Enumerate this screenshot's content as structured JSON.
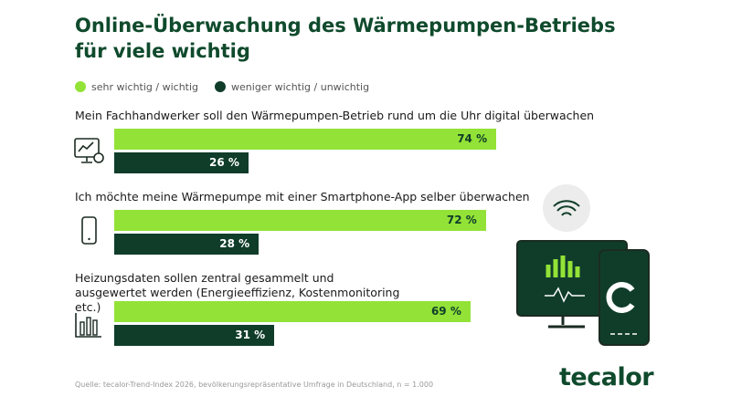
{
  "title": "Online-Überwachung des Wärmepumpen-Betriebs für viele wichtig",
  "chart_data": {
    "type": "bar",
    "title": "Online-Überwachung des Wärmepumpen-Betriebs für viele wichtig",
    "legend": [
      "sehr wichtig / wichtig",
      "weniger wichtig / unwichtig"
    ],
    "legend_placement": "top-left",
    "colors": [
      "#93e237",
      "#0f3d2a"
    ],
    "categories": [
      "Mein Fachhandwerker soll den Wärmepumpen-Betrieb rund um die Uhr digital überwachen",
      "Ich möchte meine Wärmepumpe mit einer Smartphone-App selber überwachen",
      "Heizungsdaten sollen zentral gesammelt und ausgewertet werden (Energieeffizienz, Kostenmonitoring etc.)"
    ],
    "series": [
      {
        "name": "sehr wichtig / wichtig",
        "values": [
          74,
          72,
          69
        ],
        "labels": [
          "74 %",
          "72 %",
          "69 %"
        ]
      },
      {
        "name": "weniger wichtig / unwichtig",
        "values": [
          26,
          28,
          31
        ],
        "labels": [
          "26 %",
          "28 %",
          "31 %"
        ]
      }
    ],
    "xlim": [
      0,
      100
    ]
  },
  "source": "Quelle: tecalor-Trend-Index 2026, bevölkerungsrepräsentative Umfrage in Deutschland, n = 1.000",
  "logo": "tecalor"
}
